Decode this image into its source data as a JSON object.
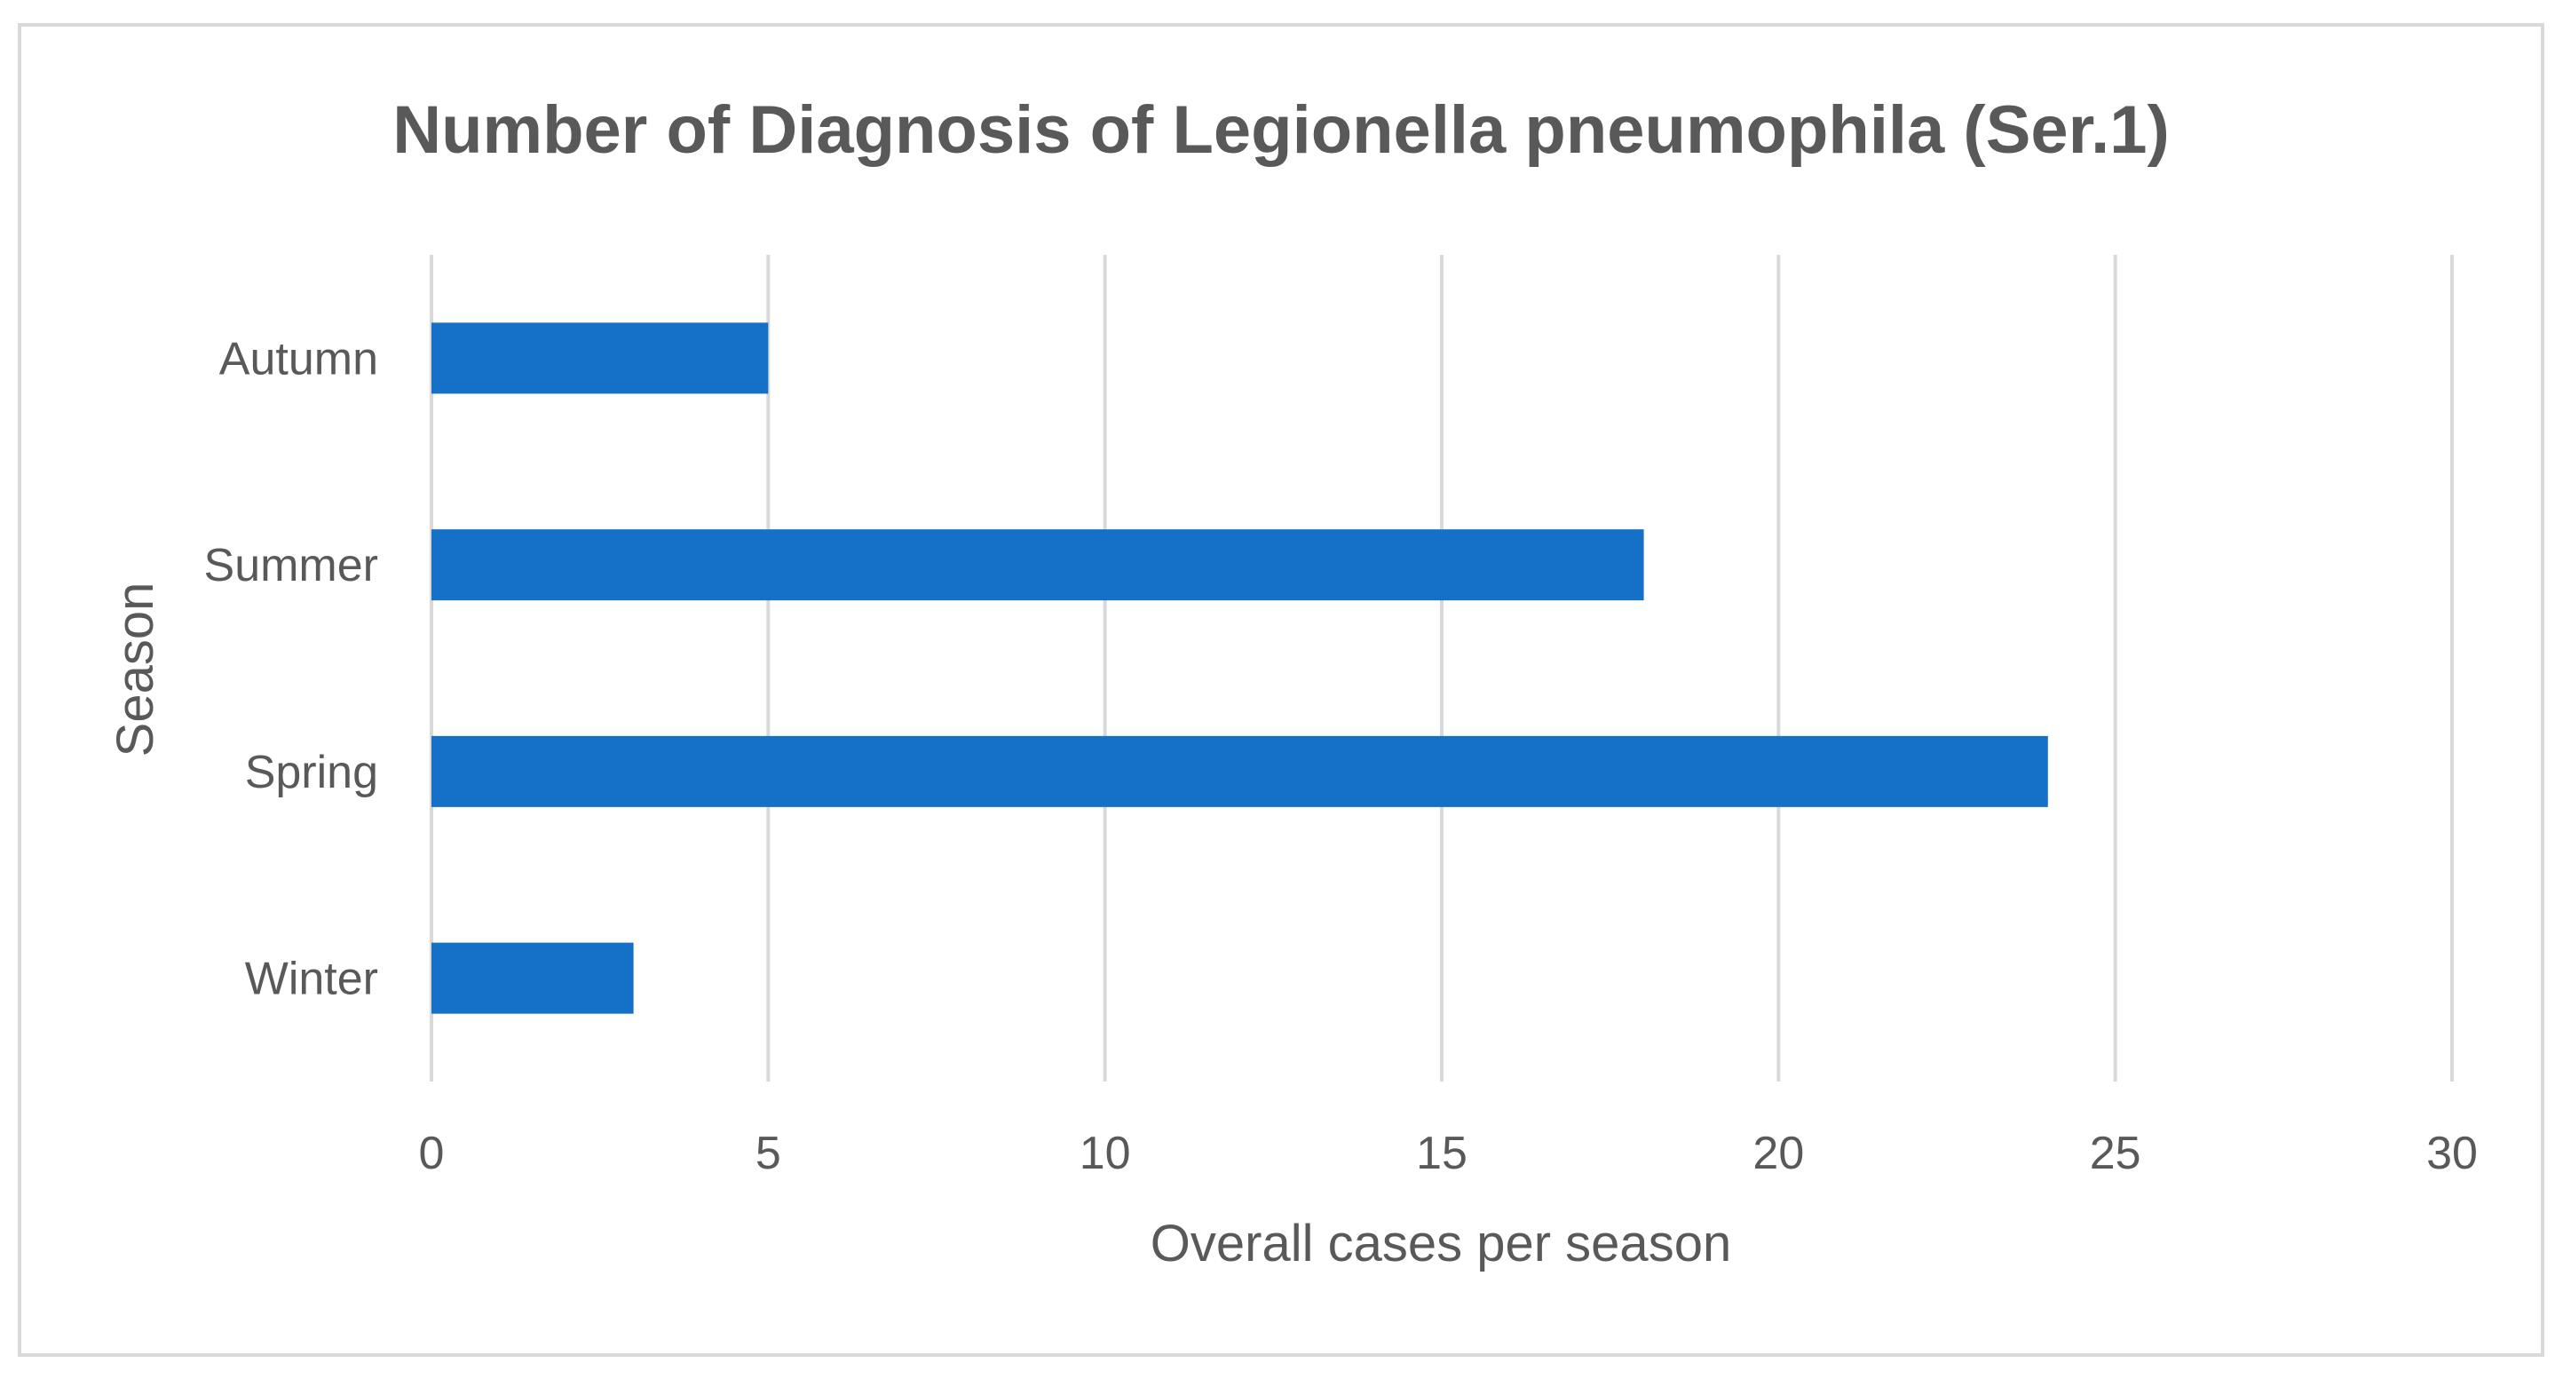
{
  "chart_data": {
    "type": "bar",
    "orientation": "horizontal",
    "title": "Number of Diagnosis of Legionella pneumophila (Ser.1)",
    "xlabel": "Overall cases per season",
    "ylabel": "Season",
    "categories": [
      "Autumn",
      "Summer",
      "Spring",
      "Winter"
    ],
    "values": [
      5,
      18,
      24,
      3
    ],
    "xlim": [
      0,
      30
    ],
    "xticks": [
      0,
      5,
      10,
      15,
      20,
      25,
      30
    ],
    "xtick_labels": [
      "0",
      "5",
      "10",
      "15",
      "20",
      "25",
      "30"
    ],
    "grid": "vertical",
    "legend": "none",
    "colors": {
      "bar": "#1570c8",
      "grid": "#d9d9d9",
      "text": "#595959",
      "border": "#d9d9d9"
    }
  }
}
